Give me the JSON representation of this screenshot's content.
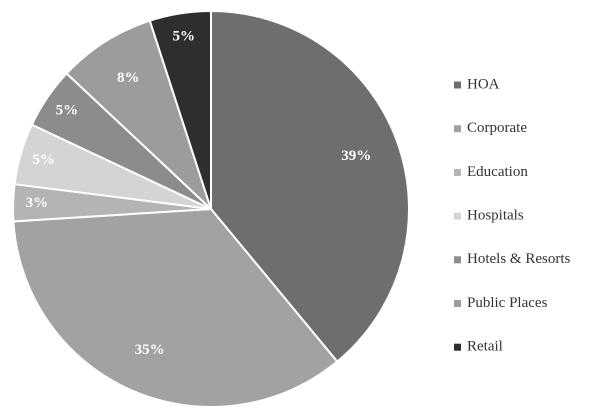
{
  "chart_data": {
    "type": "pie",
    "categories": [
      "HOA",
      "Corporate",
      "Education",
      "Hospitals",
      "Hotels & Resorts",
      "Public Places",
      "Retail"
    ],
    "values": [
      39,
      35,
      3,
      5,
      5,
      8,
      5
    ],
    "value_labels": [
      "39%",
      "35%",
      "3%",
      "5%",
      "5%",
      "8%",
      "5%"
    ],
    "colors": [
      "#6e6e6e",
      "#a2a2a2",
      "#b4b4b4",
      "#d4d4d4",
      "#8c8c8c",
      "#9c9c9c",
      "#2e2e2e"
    ],
    "legend": "right"
  }
}
